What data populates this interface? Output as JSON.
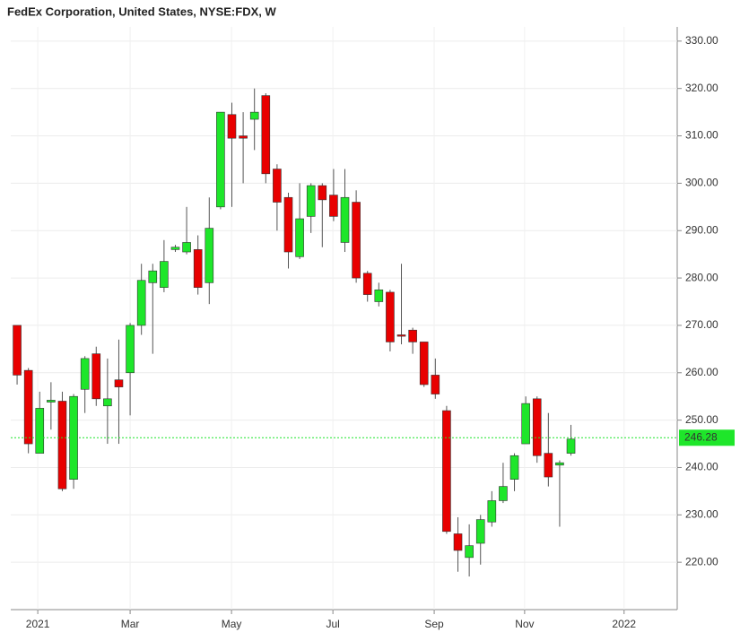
{
  "chart_data": {
    "type": "candlestick",
    "title": "FedEx Corporation, United States, NYSE:FDX, W",
    "open": [
      270,
      260.5,
      243,
      253.8,
      254,
      237.5,
      256.5,
      264,
      253,
      258.5,
      260,
      270,
      279,
      278,
      286,
      285.5,
      286,
      279,
      295,
      314.5,
      310,
      313.5,
      318.5,
      303,
      297,
      284.5,
      293,
      299.5,
      297.5,
      287.5,
      296,
      281,
      275,
      277,
      268,
      269,
      266.5,
      259.5,
      252,
      226,
      221,
      224,
      228.5,
      233,
      237.5,
      245,
      254.5,
      243,
      240.5,
      243
    ],
    "high": [
      270,
      261,
      256,
      258,
      256,
      255.5,
      263.5,
      265.5,
      263,
      267,
      270.5,
      283,
      283,
      288,
      287,
      295,
      289,
      297,
      315,
      317,
      315,
      320,
      319,
      304,
      298,
      300,
      300,
      300,
      303,
      303,
      298.5,
      281.5,
      279,
      277.5,
      283,
      269.5,
      266.5,
      263,
      253,
      229.5,
      228,
      230,
      235,
      241,
      243,
      255,
      255,
      251.5,
      241.5,
      249
    ],
    "low": [
      257.5,
      243,
      243,
      248,
      235,
      235.5,
      251.5,
      253,
      245,
      245,
      251,
      268,
      264,
      277,
      285.5,
      285,
      276.5,
      274.5,
      294.5,
      295,
      300,
      307,
      300,
      290,
      282,
      284,
      289.5,
      286.5,
      292,
      285.5,
      279,
      275,
      274,
      264.5,
      266,
      264,
      257,
      254.5,
      226,
      218,
      217,
      219.5,
      227.5,
      232.5,
      235,
      245,
      241,
      236,
      227.5,
      242.5
    ],
    "close": [
      259.5,
      245,
      252.5,
      254.2,
      235.5,
      255,
      263,
      254.5,
      254.5,
      257,
      270,
      279.5,
      281.5,
      283.5,
      286.5,
      287.5,
      278,
      290.5,
      315,
      309.5,
      309.5,
      315,
      302,
      296,
      285.5,
      292.5,
      299.5,
      296.5,
      293,
      297,
      280,
      276.5,
      277.5,
      266.5,
      267.7,
      266.5,
      257.5,
      255.5,
      226.5,
      222.5,
      223.5,
      229,
      233,
      236,
      242.5,
      253.5,
      242.5,
      238,
      241,
      246
    ],
    "up_color": "#1ee62a",
    "down_color": "#e80000",
    "last_price": 246.28,
    "last_price_color": "#1ee62a",
    "ylim": [
      210,
      333
    ],
    "yticks": [
      {
        "value": 220,
        "label": "220.00"
      },
      {
        "value": 230,
        "label": "230.00"
      },
      {
        "value": 240,
        "label": "240.00"
      },
      {
        "value": 250,
        "label": "250.00"
      },
      {
        "value": 260,
        "label": "260.00"
      },
      {
        "value": 270,
        "label": "270.00"
      },
      {
        "value": 280,
        "label": "280.00"
      },
      {
        "value": 290,
        "label": "290.00"
      },
      {
        "value": 300,
        "label": "300.00"
      },
      {
        "value": 310,
        "label": "310.00"
      },
      {
        "value": 320,
        "label": "320.00"
      },
      {
        "value": 330,
        "label": "330.00"
      }
    ],
    "xlim": [
      -0.56,
      58.4
    ],
    "xticks": [
      {
        "value": 1.83,
        "label": "2021"
      },
      {
        "value": 10,
        "label": "Mar"
      },
      {
        "value": 18.97,
        "label": "May"
      },
      {
        "value": 27.94,
        "label": "Jul"
      },
      {
        "value": 36.9,
        "label": "Sep"
      },
      {
        "value": 44.9,
        "label": "Nov"
      },
      {
        "value": 53.7,
        "label": "2022"
      }
    ],
    "grid": true
  }
}
